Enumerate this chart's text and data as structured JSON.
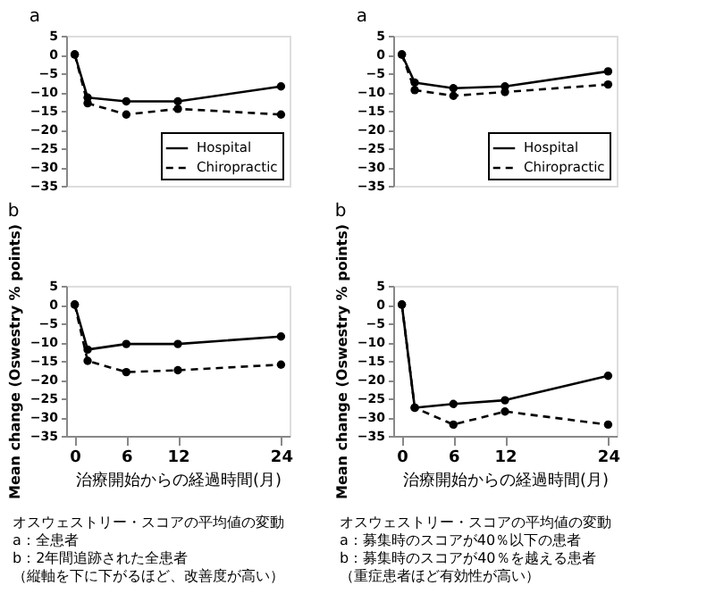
{
  "chart_data": [
    {
      "type": "line",
      "title": "a",
      "x": [
        0,
        1.5,
        6,
        12,
        24
      ],
      "xlim": [
        -1,
        25
      ],
      "xticks": [
        0,
        6,
        12,
        24
      ],
      "ylim": [
        -35,
        5
      ],
      "yticks": [
        -35,
        -30,
        -25,
        -20,
        -15,
        -10,
        -5,
        0,
        5
      ],
      "tick_labels": "y",
      "legend": "bottom right",
      "marker": "circle",
      "grid": false,
      "series": [
        {
          "name": "Hospital",
          "color": "#000000",
          "line_style": "solid",
          "values": [
            0,
            -11.5,
            -12.5,
            -12.5,
            -8.5
          ]
        },
        {
          "name": "Chiropractic",
          "color": "#000000",
          "line_style": "dashed",
          "values": [
            0,
            -13,
            -16,
            -14.5,
            -16
          ]
        }
      ]
    },
    {
      "type": "line",
      "title": "b",
      "ylabel": "Mean change (Oswestry % points)",
      "xlabel": "治療開始からの経過時間(月)",
      "x": [
        0,
        1.5,
        6,
        12,
        24
      ],
      "xlim": [
        -1,
        25
      ],
      "xticks": [
        0,
        6,
        12,
        24
      ],
      "ylim": [
        -35,
        5
      ],
      "yticks": [
        -35,
        -30,
        -25,
        -20,
        -15,
        -10,
        -5,
        0,
        5
      ],
      "marker": "circle",
      "grid": false,
      "annotations": [
        "オスウェストリー・スコアの平均値の変動",
        "a：全患者",
        "b：2年間追跡された全患者",
        "（縦軸を下に下がるほど、改善度が高い）"
      ],
      "series": [
        {
          "color": "#000000",
          "line_style": "solid",
          "values": [
            0,
            -12,
            -10.5,
            -10.5,
            -8.5
          ]
        },
        {
          "color": "#000000",
          "line_style": "dashed",
          "values": [
            0,
            -15,
            -18,
            -17.5,
            -16
          ]
        }
      ]
    },
    {
      "type": "line",
      "title": "a",
      "x": [
        0,
        1.5,
        6,
        12,
        24
      ],
      "xlim": [
        -1,
        25
      ],
      "xticks": [
        0,
        6,
        12,
        24
      ],
      "ylim": [
        -35,
        5
      ],
      "yticks": [
        -35,
        -30,
        -25,
        -20,
        -15,
        -10,
        -5,
        0,
        5
      ],
      "tick_labels": "y",
      "legend": "bottom right",
      "marker": "circle",
      "grid": false,
      "series": [
        {
          "name": "Hospital",
          "color": "#000000",
          "line_style": "solid",
          "values": [
            0,
            -7.5,
            -9,
            -8.5,
            -4.5
          ]
        },
        {
          "name": "Chiropractic",
          "color": "#000000",
          "line_style": "dashed",
          "values": [
            0,
            -9.5,
            -11,
            -10,
            -8
          ]
        }
      ]
    },
    {
      "type": "line",
      "title": "b",
      "ylabel": "Mean change (Oswestry % points)",
      "xlabel": "治療開始からの経過時間(月)",
      "x": [
        0,
        1.5,
        6,
        12,
        24
      ],
      "xlim": [
        -1,
        25
      ],
      "xticks": [
        0,
        6,
        12,
        24
      ],
      "ylim": [
        -35,
        5
      ],
      "yticks": [
        -35,
        -30,
        -25,
        -20,
        -15,
        -10,
        -5,
        0,
        5
      ],
      "marker": "circle",
      "grid": false,
      "annotations": [
        "オスウェストリー・スコアの平均値の変動",
        "a：募集時のスコアが40％以下の患者",
        "b：募集時のスコアが40％を越える患者",
        "（重症患者ほど有効性が高い）"
      ],
      "series": [
        {
          "color": "#000000",
          "line_style": "solid",
          "values": [
            0,
            -27.5,
            -26.5,
            -25.5,
            -19
          ]
        },
        {
          "color": "#000000",
          "line_style": "dashed",
          "values": [
            0,
            -27.5,
            -32,
            -28.5,
            -32
          ]
        }
      ]
    }
  ]
}
